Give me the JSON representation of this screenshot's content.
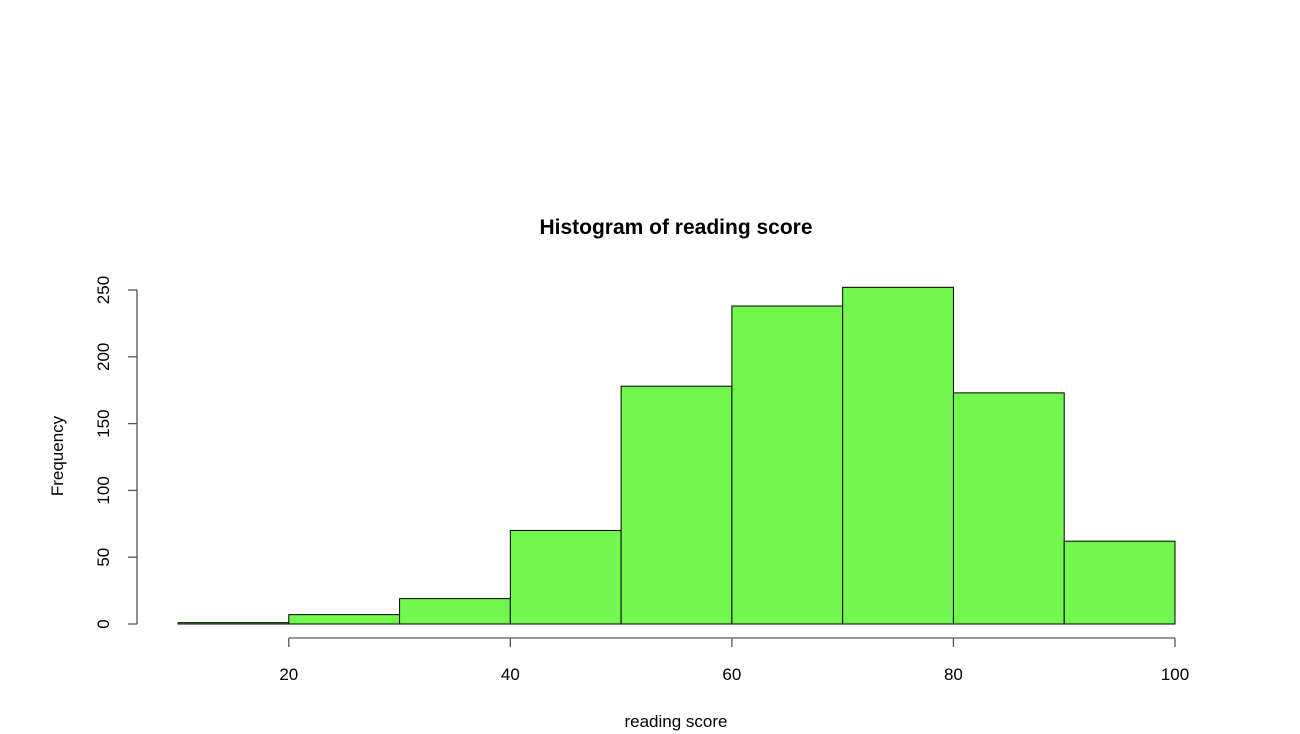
{
  "chart_data": {
    "type": "bar",
    "title": "Histogram of reading score",
    "xlabel": "reading score",
    "ylabel": "Frequency",
    "bins": [
      {
        "start": 10,
        "end": 20,
        "count": 1
      },
      {
        "start": 20,
        "end": 30,
        "count": 7
      },
      {
        "start": 30,
        "end": 40,
        "count": 19
      },
      {
        "start": 40,
        "end": 50,
        "count": 70
      },
      {
        "start": 50,
        "end": 60,
        "count": 178
      },
      {
        "start": 60,
        "end": 70,
        "count": 238
      },
      {
        "start": 70,
        "end": 80,
        "count": 252
      },
      {
        "start": 80,
        "end": 90,
        "count": 173
      },
      {
        "start": 90,
        "end": 100,
        "count": 62
      }
    ],
    "xlim": [
      10,
      100
    ],
    "ylim": [
      0,
      252
    ],
    "x_ticks": [
      "20",
      "40",
      "60",
      "80",
      "100"
    ],
    "y_ticks": [
      "0",
      "50",
      "100",
      "150",
      "200",
      "250"
    ],
    "bar_color": "#72f74e",
    "bar_border_color": "#000000",
    "grid": false,
    "legend": "none"
  }
}
